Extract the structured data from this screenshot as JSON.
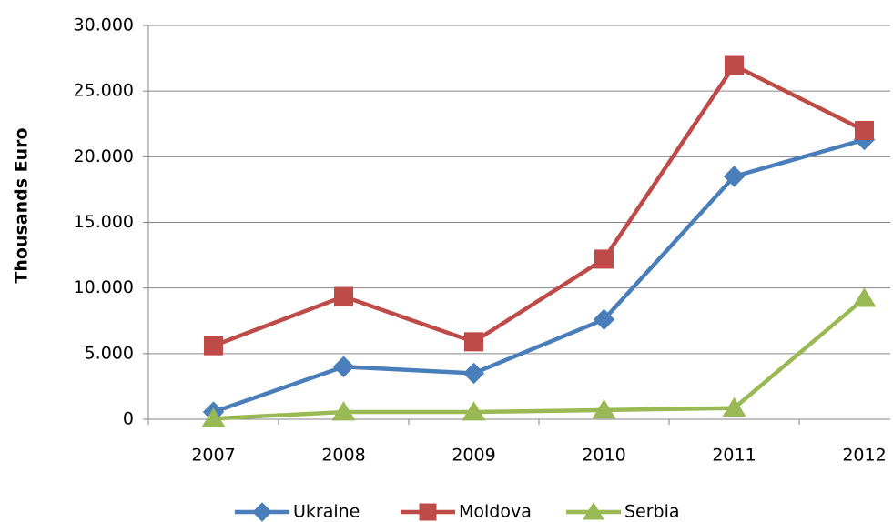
{
  "chart_data": {
    "type": "line",
    "y_label": "Thousands Euro",
    "categories": [
      "2007",
      "2008",
      "2009",
      "2010",
      "2011",
      "2012"
    ],
    "series": [
      {
        "name": "Ukraine",
        "color": "#4a7ebb",
        "marker": "diamond",
        "values": [
          550,
          4000,
          3500,
          7600,
          18500,
          21300
        ]
      },
      {
        "name": "Moldova",
        "color": "#be4b48",
        "marker": "square",
        "values": [
          5600,
          9350,
          5900,
          12200,
          26950,
          22000
        ]
      },
      {
        "name": "Serbia",
        "color": "#98b954",
        "marker": "triangle",
        "values": [
          50,
          550,
          550,
          700,
          850,
          9200
        ]
      }
    ],
    "ylim": [
      0,
      30000
    ],
    "yticks": [
      0,
      {
        "value": 5000,
        "label": "5.000"
      },
      {
        "value": 10000,
        "label": "10.000"
      },
      {
        "value": 15000,
        "label": "15.000"
      },
      {
        "value": 20000,
        "label": "20.000"
      },
      {
        "value": 25000,
        "label": "25.000"
      },
      {
        "value": 30000,
        "label": "30.000"
      }
    ],
    "grid": true,
    "legend": "bottom"
  }
}
